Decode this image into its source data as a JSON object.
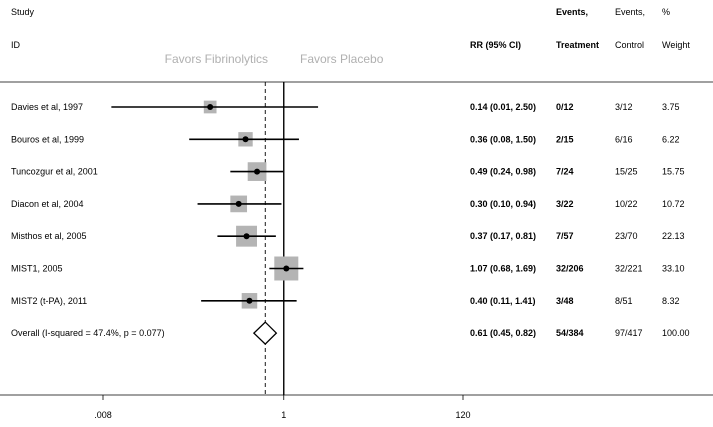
{
  "chart_data": {
    "type": "forest",
    "headers": {
      "study": "Study",
      "id": "ID",
      "rr": "RR (95% CI)",
      "events_treatment_1": "Events,",
      "events_treatment_2": "Treatment",
      "events_control_1": "Events,",
      "events_control_2": "Control",
      "weight_1": "%",
      "weight_2": "Weight"
    },
    "favors_left": "Favors Fibrinolytics",
    "favors_right": "Favors Placebo",
    "x_scale": "log",
    "x_range": [
      0.008,
      120
    ],
    "x_ticks": [
      {
        "value": 0.008,
        "label": ".008"
      },
      {
        "value": 1,
        "label": "1"
      },
      {
        "value": 120,
        "label": "120"
      }
    ],
    "null_line": 1,
    "overall_line": 0.61,
    "studies": [
      {
        "label": "Davies et al, 1997",
        "rr": 0.14,
        "lower": 0.01,
        "upper": 2.5,
        "rr_text": "0.14 (0.01, 2.50)",
        "treatment": "0/12",
        "control": "3/12",
        "weight": 3.75,
        "weight_text": "3.75"
      },
      {
        "label": "Bouros et al, 1999",
        "rr": 0.36,
        "lower": 0.08,
        "upper": 1.5,
        "rr_text": "0.36 (0.08, 1.50)",
        "treatment": "2/15",
        "control": "6/16",
        "weight": 6.22,
        "weight_text": "6.22"
      },
      {
        "label": "Tuncozgur et al, 2001",
        "rr": 0.49,
        "lower": 0.24,
        "upper": 0.98,
        "rr_text": "0.49 (0.24, 0.98)",
        "treatment": "7/24",
        "control": "15/25",
        "weight": 15.75,
        "weight_text": "15.75"
      },
      {
        "label": "Diacon et al, 2004",
        "rr": 0.3,
        "lower": 0.1,
        "upper": 0.94,
        "rr_text": "0.30 (0.10, 0.94)",
        "treatment": "3/22",
        "control": "10/22",
        "weight": 10.72,
        "weight_text": "10.72"
      },
      {
        "label": "Misthos et al, 2005",
        "rr": 0.37,
        "lower": 0.17,
        "upper": 0.81,
        "rr_text": "0.37 (0.17, 0.81)",
        "treatment": "7/57",
        "control": "23/70",
        "weight": 22.13,
        "weight_text": "22.13"
      },
      {
        "label": "MIST1, 2005",
        "rr": 1.07,
        "lower": 0.68,
        "upper": 1.69,
        "rr_text": "1.07 (0.68, 1.69)",
        "treatment": "32/206",
        "control": "32/221",
        "weight": 33.1,
        "weight_text": "33.10"
      },
      {
        "label": "MIST2 (t-PA), 2011",
        "rr": 0.4,
        "lower": 0.11,
        "upper": 1.41,
        "rr_text": "0.40 (0.11, 1.41)",
        "treatment": "3/48",
        "control": "8/51",
        "weight": 8.32,
        "weight_text": "8.32"
      }
    ],
    "overall": {
      "label": "Overall  (I-squared = 47.4%, p = 0.077)",
      "rr": 0.61,
      "lower": 0.45,
      "upper": 0.82,
      "rr_text": "0.61 (0.45, 0.82)",
      "treatment": "54/384",
      "control": "97/417",
      "weight_text": "100.00"
    },
    "colors": {
      "box": "#b4b4b4",
      "line": "#000000",
      "favors_text": "#b0b0b0"
    }
  }
}
